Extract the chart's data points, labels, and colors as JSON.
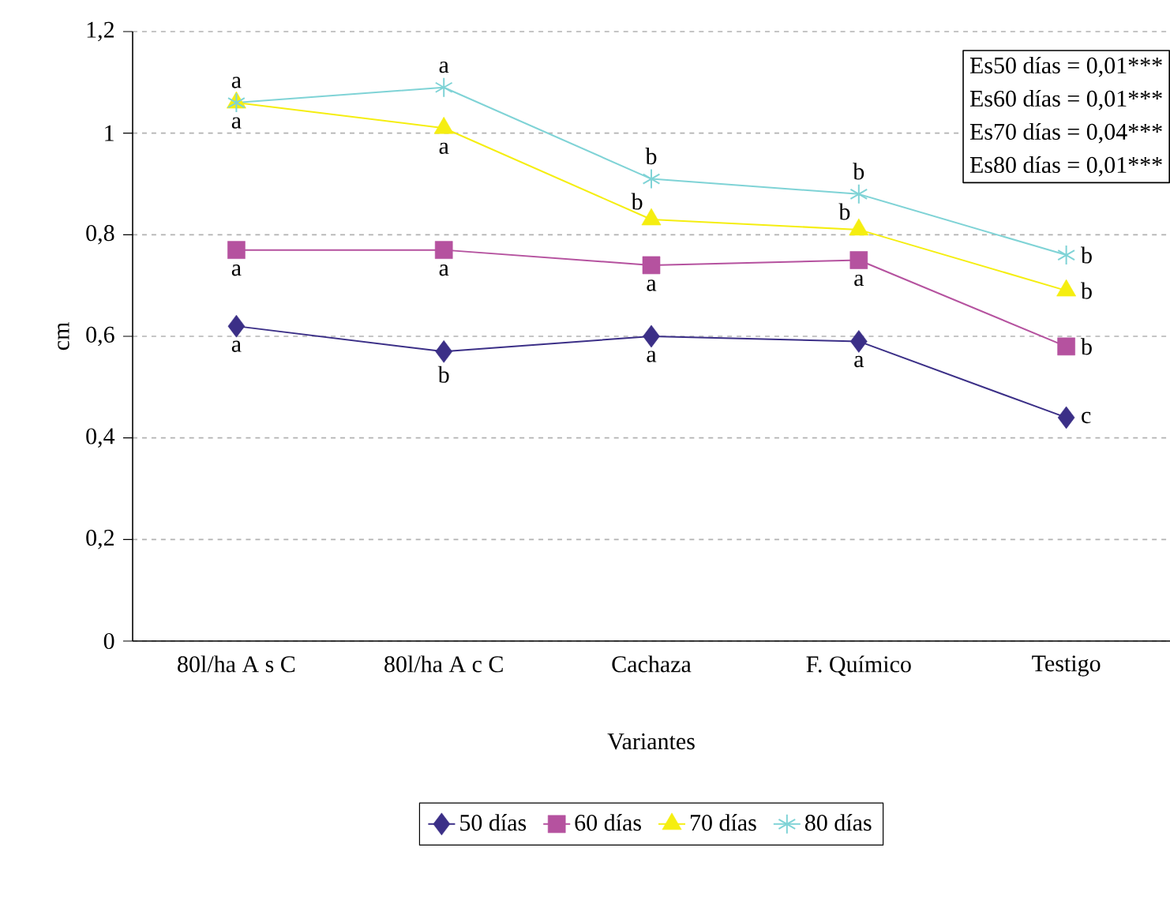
{
  "chart_data": {
    "type": "line",
    "xlabel": "Variantes",
    "ylabel": "cm",
    "categories": [
      "80l/ha A s C",
      "80l/ha A c C",
      "Cachaza",
      "F. Químico",
      "Testigo"
    ],
    "series": [
      {
        "name": "50 días",
        "color": "#3b2f87",
        "marker": "diamond",
        "values": [
          0.62,
          0.57,
          0.6,
          0.59,
          0.44
        ]
      },
      {
        "name": "60 días",
        "color": "#b5529f",
        "marker": "square",
        "values": [
          0.77,
          0.77,
          0.74,
          0.75,
          0.58
        ]
      },
      {
        "name": "70 días",
        "color": "#f5ee10",
        "marker": "triangle",
        "values": [
          1.06,
          1.01,
          0.83,
          0.81,
          0.69
        ]
      },
      {
        "name": "80 días",
        "color": "#7fd3d6",
        "marker": "cross",
        "values": [
          1.06,
          1.09,
          0.91,
          0.88,
          0.76
        ]
      }
    ],
    "ylim": [
      0,
      1.2
    ],
    "yticks": [
      0,
      {
        "value": 0.2,
        "label": "0,2"
      },
      {
        "value": 0.4,
        "label": "0,4"
      },
      {
        "value": 0.6,
        "label": "0,6"
      },
      {
        "value": 0.8,
        "label": "0,8"
      },
      1,
      {
        "value": 1.2,
        "label": "1,2"
      }
    ],
    "grid": "y",
    "legend": "bottom",
    "line_style": "solid",
    "annotations": [
      "Es50 días = 0,01***",
      "Es60 días = 0,01***",
      "Es70 días = 0,04***",
      "Es80 días = 0,01***",
      {
        "text": "a",
        "x": "80l/ha A s C",
        "y": 1.06
      },
      {
        "text": "a",
        "x": "80l/ha A s C",
        "y": 1.06
      },
      {
        "text": "a",
        "x": "80l/ha A s C",
        "y": 0.77
      },
      {
        "text": "a",
        "x": "80l/ha A s C",
        "y": 0.62
      },
      {
        "text": "a",
        "x": "80l/ha A c C",
        "y": 1.09
      },
      {
        "text": "a",
        "x": "80l/ha A c C",
        "y": 1.01
      },
      {
        "text": "a",
        "x": "80l/ha A c C",
        "y": 0.77
      },
      {
        "text": "b",
        "x": "80l/ha A c C",
        "y": 0.57
      },
      {
        "text": "b",
        "x": "Cachaza",
        "y": 0.91
      },
      {
        "text": "b",
        "x": "Cachaza",
        "y": 0.83
      },
      {
        "text": "a",
        "x": "Cachaza",
        "y": 0.74
      },
      {
        "text": "a",
        "x": "Cachaza",
        "y": 0.6
      },
      {
        "text": "b",
        "x": "F. Químico",
        "y": 0.88
      },
      {
        "text": "b",
        "x": "F. Químico",
        "y": 0.81
      },
      {
        "text": "a",
        "x": "F. Químico",
        "y": 0.75
      },
      {
        "text": "a",
        "x": "F. Químico",
        "y": 0.59
      },
      {
        "text": "b",
        "x": "Testigo",
        "y": 0.76
      },
      {
        "text": "b",
        "x": "Testigo",
        "y": 0.69
      },
      {
        "text": "b",
        "x": "Testigo",
        "y": 0.58
      },
      {
        "text": "c",
        "x": "Testigo",
        "y": 0.44
      }
    ]
  }
}
